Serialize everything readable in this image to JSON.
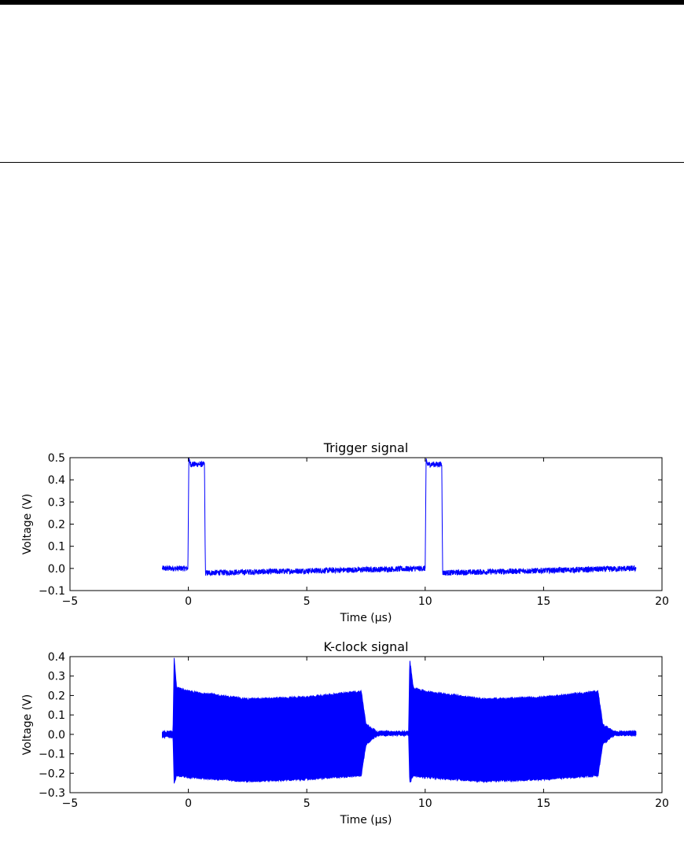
{
  "chart_data": [
    {
      "type": "line",
      "title": "Trigger signal",
      "xlabel": "Time (μs)",
      "ylabel": "Voltage (V)",
      "xlim": [
        -5,
        20
      ],
      "ylim": [
        -0.1,
        0.5
      ],
      "xticks": [
        -5,
        0,
        5,
        10,
        15,
        20
      ],
      "yticks": [
        -0.1,
        0.0,
        0.1,
        0.2,
        0.3,
        0.4,
        0.5
      ],
      "xtick_labels": [
        "−5",
        "0",
        "5",
        "10",
        "15",
        "20"
      ],
      "ytick_labels": [
        "−0.1",
        "0.0",
        "0.1",
        "0.2",
        "0.3",
        "0.4",
        "0.5"
      ],
      "grid": false,
      "color": "#0000ff",
      "series": [
        {
          "x": [
            -1.1,
            -0.02,
            0.0,
            0.02,
            0.1,
            0.68,
            0.7,
            0.72,
            10.0,
            10.02,
            10.04,
            10.1,
            10.7,
            10.72,
            10.74,
            18.9
          ],
          "y": [
            0.0,
            0.0,
            0.25,
            0.49,
            0.47,
            0.47,
            0.2,
            -0.02,
            0.0,
            0.25,
            0.49,
            0.47,
            0.47,
            0.2,
            -0.02,
            0.0
          ]
        }
      ]
    },
    {
      "type": "line",
      "title": "K-clock signal",
      "xlabel": "Time (μs)",
      "ylabel": "Voltage (V)",
      "xlim": [
        -5,
        20
      ],
      "ylim": [
        -0.3,
        0.4
      ],
      "xticks": [
        -5,
        0,
        5,
        10,
        15,
        20
      ],
      "yticks": [
        -0.3,
        -0.2,
        -0.1,
        0.0,
        0.1,
        0.2,
        0.3,
        0.4
      ],
      "xtick_labels": [
        "−5",
        "0",
        "5",
        "10",
        "15",
        "20"
      ],
      "ytick_labels": [
        "−0.3",
        "−0.2",
        "−0.1",
        "0.0",
        "0.1",
        "0.2",
        "0.3",
        "0.4"
      ],
      "grid": false,
      "color": "#0000ff",
      "series": [
        {
          "x": [
            -1.1,
            -0.65,
            -0.6,
            -0.5,
            0.0,
            2.5,
            5.0,
            7.3,
            7.5,
            8.0,
            9.3,
            9.35,
            9.5,
            10.0,
            12.5,
            15.0,
            17.3,
            17.5,
            18.0,
            18.9
          ],
          "y_upper": [
            0.0,
            0.0,
            0.39,
            0.24,
            0.22,
            0.18,
            0.19,
            0.22,
            0.05,
            0.01,
            0.01,
            0.38,
            0.24,
            0.22,
            0.18,
            0.19,
            0.22,
            0.05,
            0.01,
            0.01
          ],
          "y_lower": [
            0.0,
            0.0,
            -0.25,
            -0.21,
            -0.22,
            -0.24,
            -0.23,
            -0.21,
            -0.05,
            0.0,
            0.0,
            -0.25,
            -0.21,
            -0.22,
            -0.24,
            -0.23,
            -0.21,
            -0.05,
            0.0,
            0.0
          ]
        }
      ]
    }
  ]
}
